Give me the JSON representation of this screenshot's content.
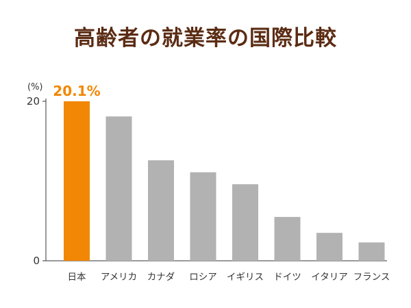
{
  "colors": {
    "highlight": "#f28705",
    "bar": "#b2b2b2",
    "title": "#5b2c14",
    "axis": "#333333"
  },
  "chart_data": {
    "type": "bar",
    "title": "高齢者の就業率の国際比較",
    "ylabel": "(%)",
    "ylim": [
      0,
      20
    ],
    "yticks": [
      "0",
      "20"
    ],
    "categories": [
      "日本",
      "アメリカ",
      "カナダ",
      "ロシア",
      "イギリス",
      "ドイツ",
      "イタリア",
      "フランス"
    ],
    "values": [
      20.1,
      18.1,
      12.6,
      11.1,
      9.6,
      5.5,
      3.5,
      2.3
    ],
    "highlight": {
      "index": 0,
      "label": "20.1%"
    },
    "grid": false,
    "legend": "none"
  }
}
